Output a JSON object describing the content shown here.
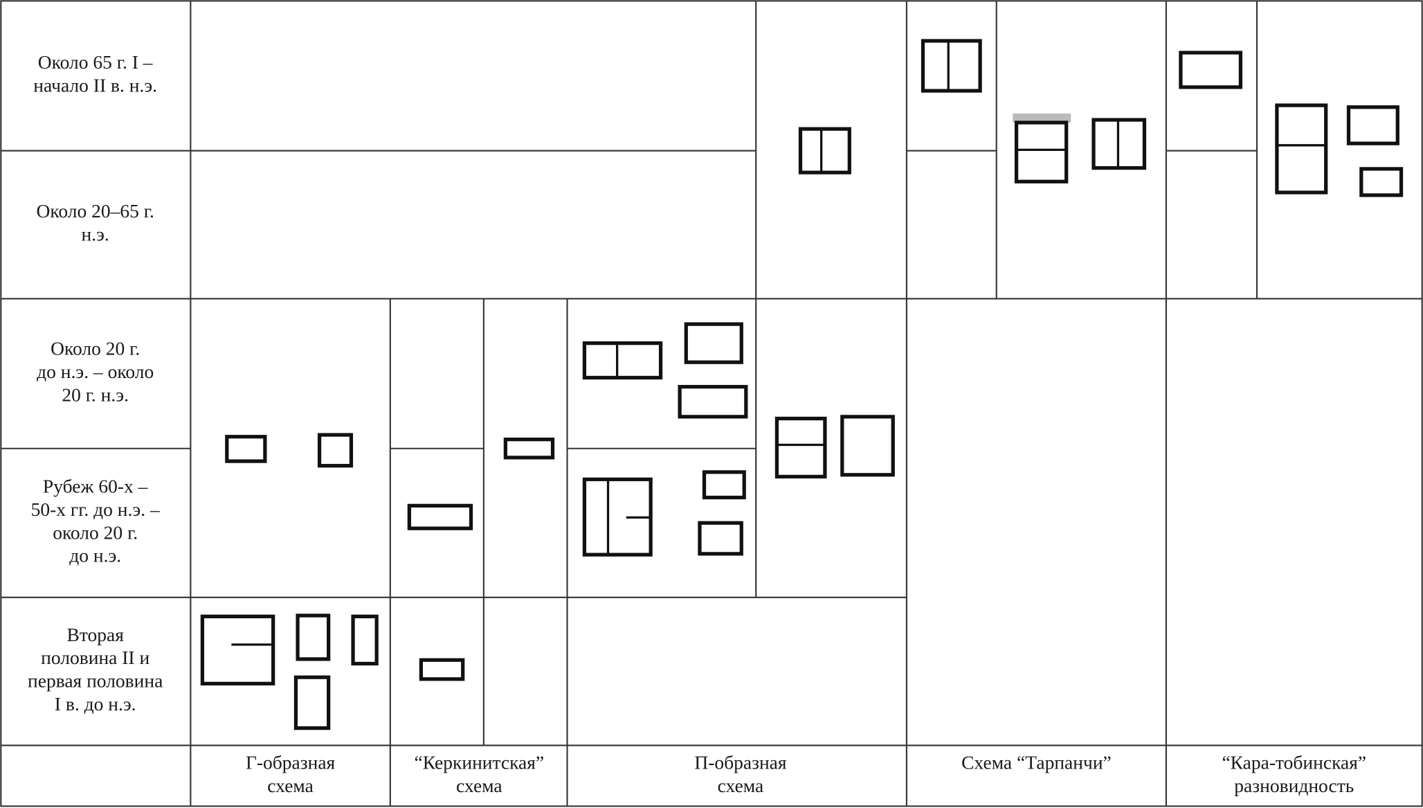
{
  "table": {
    "rows": [
      {
        "label": [
          "Около 65 г. I –",
          "начало II в. н.э."
        ]
      },
      {
        "label": [
          "Около 20–65 г.",
          "н.э."
        ]
      },
      {
        "label": [
          "Около 20 г.",
          "до н.э. – около",
          "20 г. н.э."
        ]
      },
      {
        "label": [
          "Рубеж 60-х –",
          "50-х гг. до н.э. –",
          "около 20 г.",
          "до н.э."
        ]
      },
      {
        "label": [
          "Вторая",
          "половина II и",
          "первая половина",
          "I в. до н.э."
        ]
      }
    ],
    "columns": [
      {
        "label": [
          "Г-образная",
          "схема"
        ]
      },
      {
        "label": [
          "“Керкинитская”",
          "схема"
        ]
      },
      {
        "label": [
          "П-образная",
          "схема"
        ]
      },
      {
        "label": [
          "Схема “Тарпанчи”"
        ]
      },
      {
        "label": [
          "“Кара-тобинская”",
          "разновидность"
        ]
      }
    ]
  }
}
